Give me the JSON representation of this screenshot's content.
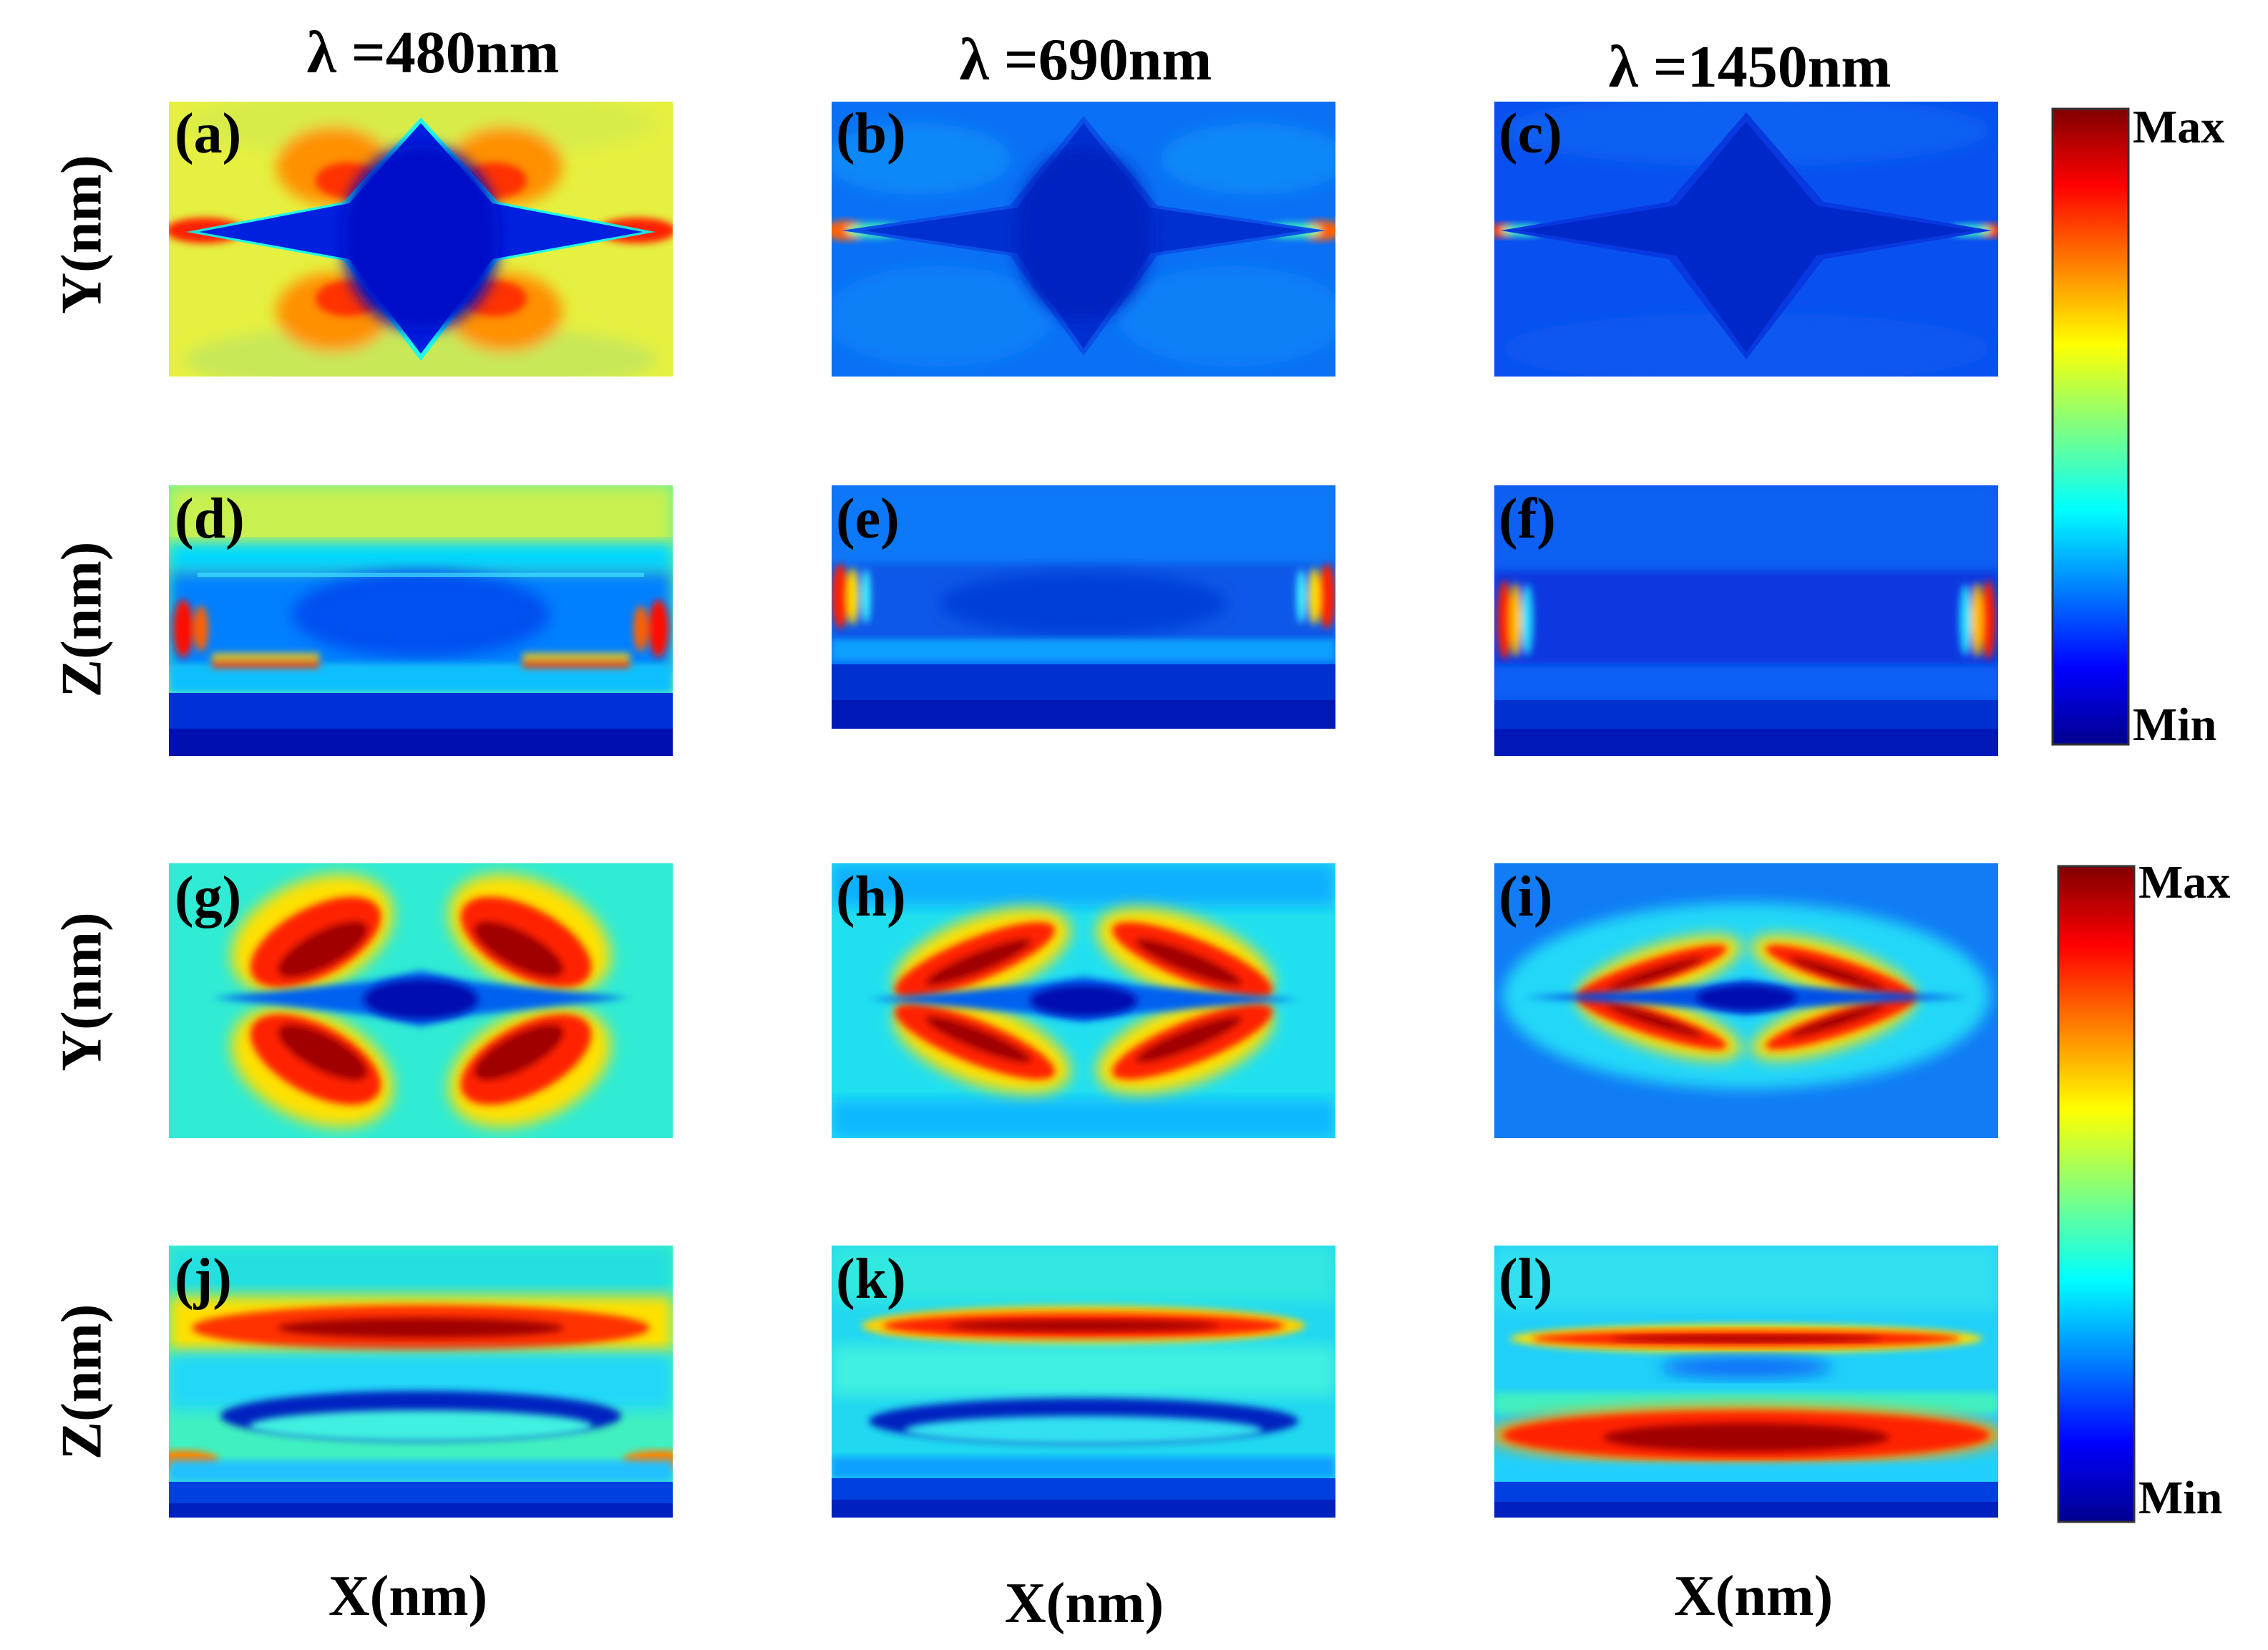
{
  "figure": {
    "columns": [
      {
        "wavelength_label": "λ =480nm"
      },
      {
        "wavelength_label": "λ =690nm"
      },
      {
        "wavelength_label": "λ =1450nm"
      }
    ],
    "row_axis_labels": [
      "Y(nm)",
      "Z(nm)",
      "Y(nm)",
      "Z(nm)"
    ],
    "x_axis_labels": [
      "X(nm)",
      "X(nm)",
      "X(nm)"
    ],
    "panels": [
      {
        "id": "a",
        "label": "(a)"
      },
      {
        "id": "b",
        "label": "(b)"
      },
      {
        "id": "c",
        "label": "(c)"
      },
      {
        "id": "d",
        "label": "(d)"
      },
      {
        "id": "e",
        "label": "(e)"
      },
      {
        "id": "f",
        "label": "(f)"
      },
      {
        "id": "g",
        "label": "(g)"
      },
      {
        "id": "h",
        "label": "(h)"
      },
      {
        "id": "i",
        "label": "(i)"
      },
      {
        "id": "j",
        "label": "(j)"
      },
      {
        "id": "k",
        "label": "(k)"
      },
      {
        "id": "l",
        "label": "(l)"
      }
    ],
    "colorbars": [
      {
        "max_label": "Max",
        "min_label": "Min"
      },
      {
        "max_label": "Max",
        "min_label": "Min"
      }
    ],
    "colors": {
      "jet_dark_red": "#7f0000",
      "jet_red": "#ff0000",
      "jet_orange": "#ff8000",
      "jet_yellow": "#ffff00",
      "jet_cyan": "#00ffff",
      "jet_blue": "#0080ff",
      "jet_dark_blue": "#00008f"
    }
  }
}
